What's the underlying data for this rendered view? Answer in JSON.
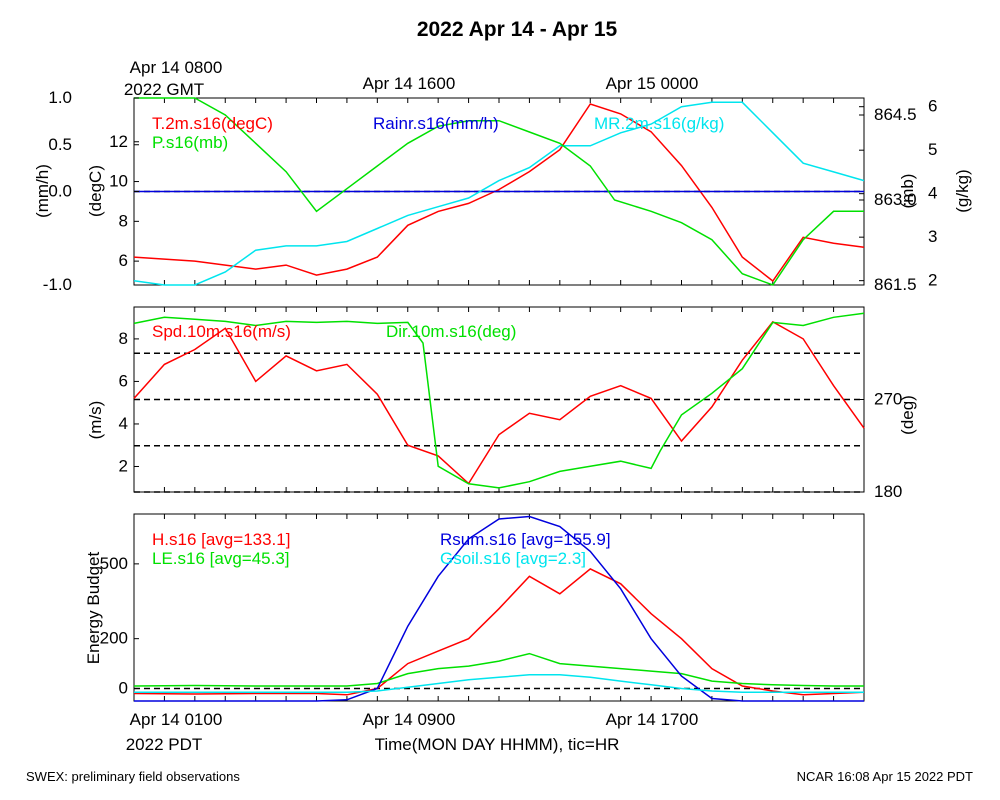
{
  "title": "2022 Apr 14 - Apr 15",
  "top_axis": {
    "gmt_labels": [
      "Apr 14 0800",
      "Apr 14 1600",
      "Apr 15 0000"
    ],
    "gmt_year": "2022 GMT"
  },
  "bottom_axis": {
    "local_labels": [
      "Apr 14 0100",
      "Apr 14 0900",
      "Apr 14 1700"
    ],
    "local_year": "2022 PDT",
    "xlabel": "Time(MON DAY HHMM), tic=HR"
  },
  "footer": {
    "left": "SWEX: preliminary field observations",
    "right": "NCAR 16:08 Apr 15 2022 PDT"
  },
  "colors": {
    "red": "#ff0000",
    "green": "#00e000",
    "blue": "#0000dd",
    "cyan": "#00e5ee",
    "black": "#000000"
  },
  "chart_data": [
    {
      "type": "line",
      "panel": "top",
      "x_unit": "hours since Apr 14 0100 PDT",
      "xlim": [
        0,
        24
      ],
      "axes": {
        "rain": {
          "label": "(mm/h)",
          "ticks": [
            "-1.0",
            "0.0",
            "0.5",
            "1.0"
          ],
          "ylim": [
            -1.0,
            1.0
          ]
        },
        "temp": {
          "label": "(degC)",
          "ticks": [
            "6",
            "8",
            "10",
            "12"
          ],
          "ylim": [
            4.8,
            14.2
          ]
        },
        "pres": {
          "label": "(mb)",
          "ticks": [
            "861.5",
            "863.0",
            "864.5"
          ],
          "ylim": [
            861.5,
            864.8
          ]
        },
        "mr": {
          "label": "(g/kg)",
          "ticks": [
            "2",
            "3",
            "4",
            "5",
            "6"
          ],
          "ylim": [
            1.9,
            6.2
          ]
        }
      },
      "series": [
        {
          "name": "T.2m.s16(degC)",
          "color": "#ff0000",
          "axis": "temp",
          "x": [
            0,
            1,
            2,
            3,
            4,
            5,
            6,
            7,
            8,
            9,
            10,
            11,
            12,
            13,
            14,
            15,
            16,
            17,
            18,
            19,
            20,
            21,
            22,
            23,
            24
          ],
          "y": [
            6.2,
            6.1,
            6.0,
            5.8,
            5.6,
            5.8,
            5.3,
            5.6,
            6.2,
            7.8,
            8.5,
            8.9,
            9.6,
            10.5,
            11.6,
            13.9,
            13.4,
            12.5,
            10.8,
            8.7,
            6.2,
            5.0,
            7.2,
            6.9,
            6.7
          ]
        },
        {
          "name": "Rainr.s16(mm/h)",
          "color": "#0000dd",
          "axis": "rain",
          "x": [
            0,
            24
          ],
          "y": [
            0.0,
            0.0
          ]
        },
        {
          "name": "MR.2m.s16(g/kg)",
          "color": "#00e5ee",
          "axis": "mr",
          "x": [
            0,
            1,
            2,
            3,
            4,
            5,
            6,
            7,
            8,
            9,
            10,
            11,
            12,
            13,
            14,
            15,
            16,
            17,
            18,
            19,
            20,
            21,
            22,
            23,
            24
          ],
          "y": [
            2.0,
            1.9,
            1.8,
            2.2,
            2.7,
            2.8,
            2.8,
            2.9,
            3.2,
            3.5,
            3.7,
            3.9,
            4.3,
            4.6,
            5.1,
            5.1,
            5.4,
            5.6,
            6.0,
            6.1,
            6.1,
            5.4,
            4.7,
            4.5,
            4.3
          ]
        },
        {
          "name": "P.s16(mb)",
          "color": "#00e000",
          "axis": "pres",
          "x": [
            0,
            1,
            2,
            3,
            4,
            5,
            6,
            7,
            8,
            9,
            10,
            11,
            12,
            13,
            14,
            15,
            15.8,
            17,
            18,
            19,
            20,
            21,
            22,
            23,
            24
          ],
          "y": [
            864.8,
            864.8,
            864.8,
            864.5,
            864.0,
            863.5,
            862.8,
            863.2,
            863.6,
            864.0,
            864.3,
            864.4,
            864.4,
            864.2,
            864.0,
            863.6,
            863.0,
            862.8,
            862.6,
            862.3,
            861.7,
            861.5,
            862.3,
            862.8,
            862.8
          ]
        }
      ],
      "reference_lines": [
        {
          "axis": "rain",
          "y": 0.0
        }
      ]
    },
    {
      "type": "line",
      "panel": "middle",
      "x_unit": "hours since Apr 14 0100 PDT",
      "xlim": [
        0,
        24
      ],
      "axes": {
        "spd": {
          "label": "(m/s)",
          "ticks": [
            "2",
            "4",
            "6",
            "8"
          ],
          "ylim": [
            0.8,
            9.5
          ]
        },
        "dir": {
          "label": "(deg)",
          "ticks": [
            "180",
            "270"
          ],
          "ylim": [
            180,
            360
          ]
        }
      },
      "series": [
        {
          "name": "Spd.10m.s16(m/s)",
          "color": "#ff0000",
          "axis": "spd",
          "x": [
            0,
            1,
            2,
            3,
            4,
            5,
            6,
            7,
            8,
            9,
            10,
            11,
            12,
            13,
            14,
            15,
            16,
            17,
            18,
            19,
            20,
            21,
            22,
            23,
            24
          ],
          "y": [
            5.2,
            6.8,
            7.5,
            8.5,
            6.0,
            7.2,
            6.5,
            6.8,
            5.4,
            3.0,
            2.5,
            1.2,
            3.5,
            4.5,
            4.2,
            5.3,
            5.8,
            5.2,
            3.2,
            4.8,
            7.0,
            8.8,
            8.0,
            5.8,
            3.8
          ]
        },
        {
          "name": "Dir.10m.s16(deg)",
          "color": "#00e000",
          "axis": "dir",
          "x": [
            0,
            1,
            2,
            3,
            4,
            5,
            6,
            7,
            8,
            9,
            9.5,
            10,
            11,
            12,
            13,
            14,
            15,
            16,
            17,
            17.3,
            18,
            19,
            20,
            21,
            22,
            23,
            24
          ],
          "y": [
            344,
            350,
            348,
            346,
            342,
            346,
            345,
            346,
            344,
            345,
            325,
            205,
            188,
            184,
            190,
            200,
            205,
            210,
            203,
            220,
            255,
            276,
            300,
            345,
            342,
            350,
            354
          ]
        }
      ],
      "reference_lines": [
        {
          "axis": "dir",
          "y": 180
        },
        {
          "axis": "dir",
          "y": 225
        },
        {
          "axis": "dir",
          "y": 270
        },
        {
          "axis": "dir",
          "y": 315
        }
      ]
    },
    {
      "type": "line",
      "panel": "bottom",
      "x_unit": "hours since Apr 14 0100 PDT",
      "xlim": [
        0,
        24
      ],
      "ylabel": "Energy Budget",
      "yticks": [
        "0",
        "200",
        "500"
      ],
      "ylim": [
        -50,
        700
      ],
      "series": [
        {
          "name": "H.s16 [avg=133.1]",
          "color": "#ff0000",
          "x": [
            0,
            2,
            4,
            6,
            7,
            8,
            9,
            10,
            11,
            12,
            13,
            14,
            15,
            16,
            17,
            18,
            19,
            20,
            21,
            22,
            23,
            24
          ],
          "y": [
            -20,
            -22,
            -20,
            -20,
            -25,
            0,
            100,
            150,
            200,
            320,
            450,
            380,
            480,
            420,
            300,
            200,
            80,
            10,
            -10,
            -25,
            -20,
            -15
          ]
        },
        {
          "name": "LE.s16 [avg=45.3]",
          "color": "#00e000",
          "x": [
            0,
            2,
            4,
            6,
            7,
            8,
            9,
            10,
            11,
            12,
            13,
            14,
            15,
            16,
            17,
            18,
            19,
            20,
            21,
            22,
            23,
            24
          ],
          "y": [
            10,
            12,
            10,
            10,
            10,
            20,
            60,
            80,
            90,
            110,
            140,
            100,
            90,
            80,
            70,
            60,
            30,
            20,
            15,
            12,
            10,
            10
          ]
        },
        {
          "name": "Rsum.s16 [avg=155.9]",
          "color": "#0000dd",
          "x": [
            0,
            2,
            4,
            6,
            7,
            8,
            9,
            10,
            11,
            12,
            13,
            14,
            15,
            16,
            17,
            18,
            19,
            20,
            21,
            22,
            23,
            24
          ],
          "y": [
            -50,
            -50,
            -50,
            -50,
            -45,
            0,
            250,
            450,
            600,
            680,
            690,
            650,
            550,
            400,
            200,
            50,
            -40,
            -50,
            -55,
            -55,
            -55,
            -55
          ]
        },
        {
          "name": "Gsoil.s16 [avg=2.3]",
          "color": "#00e5ee",
          "x": [
            0,
            2,
            4,
            6,
            7,
            8,
            9,
            10,
            11,
            12,
            13,
            14,
            15,
            16,
            17,
            18,
            19,
            20,
            21,
            22,
            23,
            24
          ],
          "y": [
            -15,
            -15,
            -15,
            -15,
            -15,
            -10,
            5,
            20,
            35,
            45,
            55,
            55,
            45,
            30,
            15,
            0,
            -10,
            -15,
            -15,
            -15,
            -15,
            -15
          ]
        }
      ],
      "reference_lines": [
        {
          "y": 0
        }
      ]
    }
  ]
}
